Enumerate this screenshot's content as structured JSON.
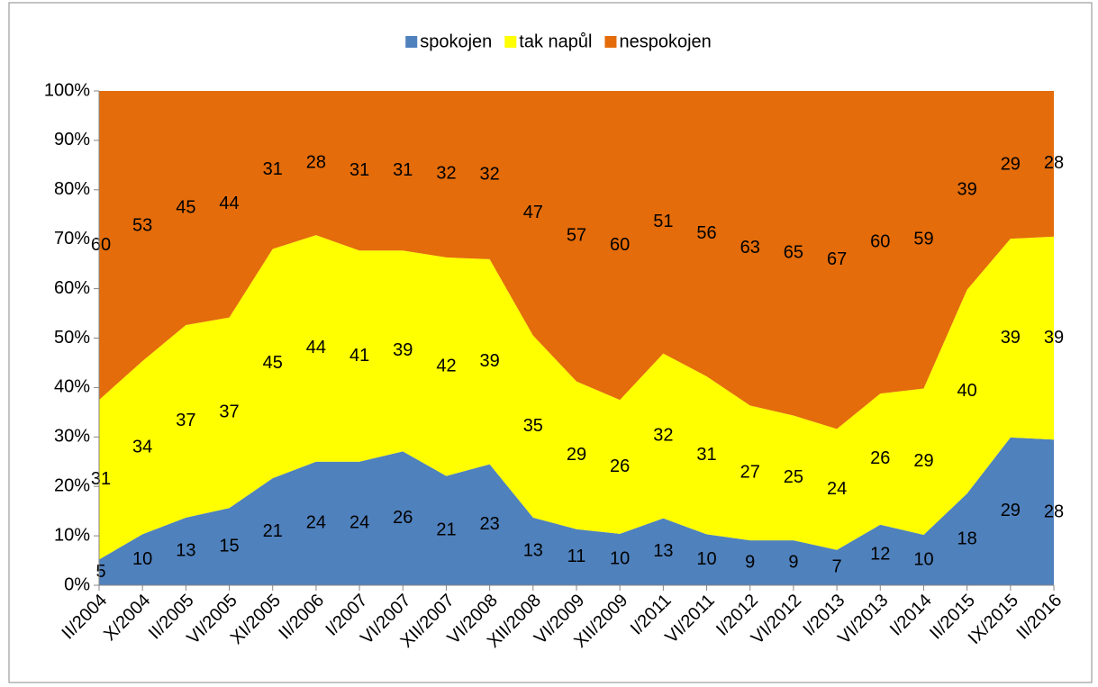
{
  "chart_data": {
    "type": "area",
    "stacking": "percent",
    "categories": [
      "II/2004",
      "X/2004",
      "II/2005",
      "VI/2005",
      "XI/2005",
      "II/2006",
      "I/2007",
      "VI/2007",
      "XII/2007",
      "VI/2008",
      "XII/2008",
      "VI/2009",
      "XII/2009",
      "I/2011",
      "VI/2011",
      "I/2012",
      "VI/2012",
      "I/2013",
      "VI/2013",
      "I/2014",
      "II/2015",
      "IX/2015",
      "II/2016"
    ],
    "series": [
      {
        "name": "spokojen",
        "color": "#4f81bd",
        "values": [
          5,
          10,
          13,
          15,
          21,
          24,
          24,
          26,
          21,
          23,
          13,
          11,
          10,
          13,
          10,
          9,
          9,
          7,
          12,
          10,
          18,
          29,
          28
        ]
      },
      {
        "name": "tak napůl",
        "color": "#ffff00",
        "values": [
          31,
          34,
          37,
          37,
          45,
          44,
          41,
          39,
          42,
          39,
          35,
          29,
          26,
          32,
          31,
          27,
          25,
          24,
          26,
          29,
          40,
          39,
          39
        ]
      },
      {
        "name": "nespokojen",
        "color": "#e46c0a",
        "values": [
          60,
          53,
          45,
          44,
          31,
          28,
          31,
          31,
          32,
          32,
          47,
          57,
          60,
          51,
          56,
          63,
          65,
          67,
          60,
          59,
          39,
          29,
          28
        ]
      }
    ],
    "ylim": [
      0,
      100
    ],
    "yticks": [
      {
        "value": 0,
        "label": "0%"
      },
      {
        "value": 10,
        "label": "10%"
      },
      {
        "value": 20,
        "label": "20%"
      },
      {
        "value": 30,
        "label": "30%"
      },
      {
        "value": 40,
        "label": "40%"
      },
      {
        "value": 50,
        "label": "50%"
      },
      {
        "value": 60,
        "label": "60%"
      },
      {
        "value": 70,
        "label": "70%"
      },
      {
        "value": 80,
        "label": "80%"
      },
      {
        "value": 90,
        "label": "90%"
      },
      {
        "value": 100,
        "label": "100%"
      }
    ],
    "legend": "top"
  }
}
